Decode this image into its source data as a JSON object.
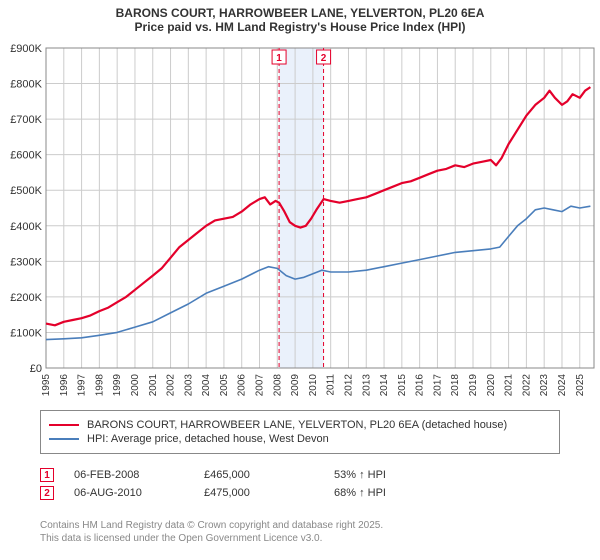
{
  "title_line1": "BARONS COURT, HARROWBEER LANE, YELVERTON, PL20 6EA",
  "title_line2": "Price paid vs. HM Land Registry's House Price Index (HPI)",
  "chart": {
    "type": "line",
    "background_color": "#ffffff",
    "plot_background": "#ffffff",
    "grid_color": "#cccccc",
    "axis_color": "#888888",
    "highlight_band": {
      "x_start": 2008.1,
      "x_end": 2010.6,
      "fill": "#eaf1fb"
    },
    "xlim": [
      1995,
      2025.8
    ],
    "ylim": [
      0,
      900000
    ],
    "x_ticks": [
      1995,
      1996,
      1997,
      1998,
      1999,
      2000,
      2001,
      2002,
      2003,
      2004,
      2005,
      2006,
      2007,
      2008,
      2009,
      2010,
      2011,
      2012,
      2013,
      2014,
      2015,
      2016,
      2017,
      2018,
      2019,
      2020,
      2021,
      2022,
      2023,
      2024,
      2025
    ],
    "y_ticks": [
      0,
      100000,
      200000,
      300000,
      400000,
      500000,
      600000,
      700000,
      800000,
      900000
    ],
    "y_tick_labels": [
      "£0",
      "£100K",
      "£200K",
      "£300K",
      "£400K",
      "£500K",
      "£600K",
      "£700K",
      "£800K",
      "£900K"
    ],
    "x_label_fontsize": 10,
    "y_label_fontsize": 11,
    "series": [
      {
        "name": "property",
        "label": "BARONS COURT, HARROWBEER LANE, YELVERTON, PL20 6EA (detached house)",
        "color": "#e4002b",
        "line_width": 2.2,
        "data": [
          [
            1995,
            125000
          ],
          [
            1995.5,
            120000
          ],
          [
            1996,
            130000
          ],
          [
            1996.5,
            135000
          ],
          [
            1997,
            140000
          ],
          [
            1997.5,
            148000
          ],
          [
            1998,
            160000
          ],
          [
            1998.5,
            170000
          ],
          [
            1999,
            185000
          ],
          [
            1999.5,
            200000
          ],
          [
            2000,
            220000
          ],
          [
            2000.5,
            240000
          ],
          [
            2001,
            260000
          ],
          [
            2001.5,
            280000
          ],
          [
            2002,
            310000
          ],
          [
            2002.5,
            340000
          ],
          [
            2003,
            360000
          ],
          [
            2003.5,
            380000
          ],
          [
            2004,
            400000
          ],
          [
            2004.5,
            415000
          ],
          [
            2005,
            420000
          ],
          [
            2005.5,
            425000
          ],
          [
            2006,
            440000
          ],
          [
            2006.5,
            460000
          ],
          [
            2007,
            475000
          ],
          [
            2007.3,
            480000
          ],
          [
            2007.6,
            460000
          ],
          [
            2007.9,
            470000
          ],
          [
            2008.1,
            465000
          ],
          [
            2008.4,
            440000
          ],
          [
            2008.7,
            410000
          ],
          [
            2009,
            400000
          ],
          [
            2009.3,
            395000
          ],
          [
            2009.6,
            400000
          ],
          [
            2009.9,
            420000
          ],
          [
            2010.2,
            445000
          ],
          [
            2010.6,
            475000
          ],
          [
            2011,
            470000
          ],
          [
            2011.5,
            465000
          ],
          [
            2012,
            470000
          ],
          [
            2012.5,
            475000
          ],
          [
            2013,
            480000
          ],
          [
            2013.5,
            490000
          ],
          [
            2014,
            500000
          ],
          [
            2014.5,
            510000
          ],
          [
            2015,
            520000
          ],
          [
            2015.5,
            525000
          ],
          [
            2016,
            535000
          ],
          [
            2016.5,
            545000
          ],
          [
            2017,
            555000
          ],
          [
            2017.5,
            560000
          ],
          [
            2018,
            570000
          ],
          [
            2018.5,
            565000
          ],
          [
            2019,
            575000
          ],
          [
            2019.5,
            580000
          ],
          [
            2020,
            585000
          ],
          [
            2020.3,
            570000
          ],
          [
            2020.6,
            590000
          ],
          [
            2021,
            630000
          ],
          [
            2021.5,
            670000
          ],
          [
            2022,
            710000
          ],
          [
            2022.5,
            740000
          ],
          [
            2023,
            760000
          ],
          [
            2023.3,
            780000
          ],
          [
            2023.6,
            760000
          ],
          [
            2024,
            740000
          ],
          [
            2024.3,
            750000
          ],
          [
            2024.6,
            770000
          ],
          [
            2025,
            760000
          ],
          [
            2025.3,
            780000
          ],
          [
            2025.6,
            790000
          ]
        ]
      },
      {
        "name": "hpi",
        "label": "HPI: Average price, detached house, West Devon",
        "color": "#4a7ebb",
        "line_width": 1.6,
        "data": [
          [
            1995,
            80000
          ],
          [
            1996,
            82000
          ],
          [
            1997,
            85000
          ],
          [
            1998,
            92000
          ],
          [
            1999,
            100000
          ],
          [
            2000,
            115000
          ],
          [
            2001,
            130000
          ],
          [
            2002,
            155000
          ],
          [
            2003,
            180000
          ],
          [
            2004,
            210000
          ],
          [
            2005,
            230000
          ],
          [
            2006,
            250000
          ],
          [
            2007,
            275000
          ],
          [
            2007.5,
            285000
          ],
          [
            2008,
            280000
          ],
          [
            2008.5,
            260000
          ],
          [
            2009,
            250000
          ],
          [
            2009.5,
            255000
          ],
          [
            2010,
            265000
          ],
          [
            2010.5,
            275000
          ],
          [
            2011,
            270000
          ],
          [
            2012,
            270000
          ],
          [
            2013,
            275000
          ],
          [
            2014,
            285000
          ],
          [
            2015,
            295000
          ],
          [
            2016,
            305000
          ],
          [
            2017,
            315000
          ],
          [
            2018,
            325000
          ],
          [
            2019,
            330000
          ],
          [
            2020,
            335000
          ],
          [
            2020.5,
            340000
          ],
          [
            2021,
            370000
          ],
          [
            2021.5,
            400000
          ],
          [
            2022,
            420000
          ],
          [
            2022.5,
            445000
          ],
          [
            2023,
            450000
          ],
          [
            2023.5,
            445000
          ],
          [
            2024,
            440000
          ],
          [
            2024.5,
            455000
          ],
          [
            2025,
            450000
          ],
          [
            2025.6,
            455000
          ]
        ]
      }
    ],
    "markers": [
      {
        "id": "1",
        "x": 2008.1,
        "color": "#e4002b",
        "dash": "4,3"
      },
      {
        "id": "2",
        "x": 2010.6,
        "color": "#e4002b",
        "dash": "4,3"
      }
    ]
  },
  "legend": {
    "border_color": "#888888",
    "rows": [
      {
        "color": "#e4002b",
        "thick": true,
        "label_path": "chart.series.0.label"
      },
      {
        "color": "#4a7ebb",
        "thick": false,
        "label_path": "chart.series.1.label"
      }
    ]
  },
  "sales": [
    {
      "id": "1",
      "date": "06-FEB-2008",
      "price": "£465,000",
      "vs_hpi": "53% ↑ HPI",
      "marker_color": "#e4002b"
    },
    {
      "id": "2",
      "date": "06-AUG-2010",
      "price": "£475,000",
      "vs_hpi": "68% ↑ HPI",
      "marker_color": "#e4002b"
    }
  ],
  "footnote_line1": "Contains HM Land Registry data © Crown copyright and database right 2025.",
  "footnote_line2": "This data is licensed under the Open Government Licence v3.0."
}
